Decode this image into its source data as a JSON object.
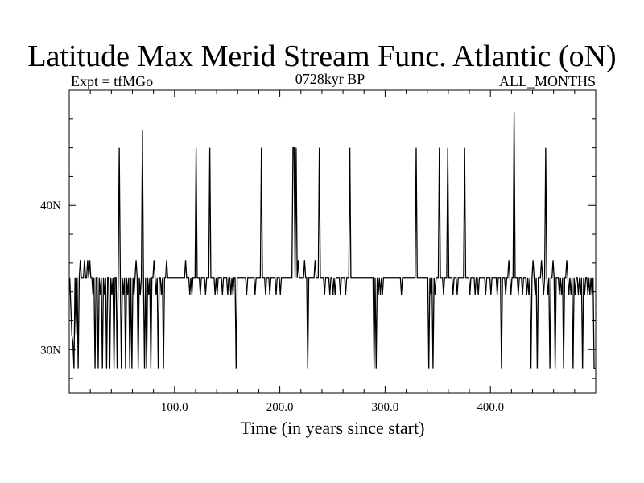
{
  "chart_data": {
    "type": "line",
    "title": "Latitude Max Merid Stream Func. Atlantic (oN)",
    "left_note": "Expt = tfMGo",
    "subtitle": "0728kyr BP",
    "right_note": "ALL_MONTHS",
    "xlabel": "Time (in years since start)",
    "ylabel": "",
    "xlim": [
      0,
      500
    ],
    "ylim": [
      27,
      48
    ],
    "x_ticks": [
      100,
      200,
      300,
      400
    ],
    "x_tick_labels": [
      "100.0",
      "200.0",
      "300.0",
      "400.0"
    ],
    "y_ticks": [
      30,
      40
    ],
    "y_tick_labels": [
      "30N",
      "40N"
    ],
    "grid": false,
    "legend": "none",
    "line_color": "#000000",
    "baseline": 35,
    "upper_alt": 36.2,
    "lower_alt": 33.8,
    "low_value": 28.7,
    "x_start": 0.5,
    "x_step": 1,
    "events": [
      [
        1,
        33
      ],
      [
        2,
        31
      ],
      [
        3,
        30.5
      ],
      [
        4,
        28.7
      ],
      [
        6,
        31
      ],
      [
        8,
        28.7
      ],
      [
        10,
        36.2
      ],
      [
        12,
        35
      ],
      [
        14,
        36.2
      ],
      [
        16,
        35
      ],
      [
        17,
        36.2
      ],
      [
        19,
        36.2
      ],
      [
        22,
        33.8
      ],
      [
        24,
        28.7
      ],
      [
        27,
        28.7
      ],
      [
        29,
        33.8
      ],
      [
        31,
        28.7
      ],
      [
        33,
        33.8
      ],
      [
        35,
        28.7
      ],
      [
        38,
        28.7
      ],
      [
        40,
        33.8
      ],
      [
        42,
        28.7
      ],
      [
        45,
        28.7
      ],
      [
        47,
        44
      ],
      [
        49,
        28.7
      ],
      [
        51,
        33.8
      ],
      [
        53,
        28.7
      ],
      [
        55,
        33.8
      ],
      [
        57,
        28.7
      ],
      [
        59,
        28.7
      ],
      [
        61,
        33.8
      ],
      [
        63,
        36.2
      ],
      [
        65,
        28.7
      ],
      [
        67,
        33.8
      ],
      [
        69,
        45.2
      ],
      [
        71,
        28.7
      ],
      [
        73,
        28.7
      ],
      [
        75,
        33.8
      ],
      [
        77,
        28.7
      ],
      [
        80,
        36.2
      ],
      [
        82,
        33.8
      ],
      [
        84,
        28.7
      ],
      [
        87,
        33.8
      ],
      [
        89,
        28.7
      ],
      [
        92,
        36.2
      ],
      [
        110,
        36.2
      ],
      [
        114,
        33.8
      ],
      [
        116,
        33.8
      ],
      [
        120,
        44
      ],
      [
        124,
        33.8
      ],
      [
        129,
        33.8
      ],
      [
        133,
        44
      ],
      [
        138,
        33.8
      ],
      [
        140,
        33.8
      ],
      [
        145,
        33.8
      ],
      [
        150,
        33.8
      ],
      [
        153,
        33.8
      ],
      [
        155,
        33.8
      ],
      [
        158,
        28.7
      ],
      [
        168,
        33.8
      ],
      [
        176,
        33.8
      ],
      [
        182,
        44
      ],
      [
        186,
        33.8
      ],
      [
        190,
        33.8
      ],
      [
        196,
        33.8
      ],
      [
        200,
        33.8
      ],
      [
        212,
        44
      ],
      [
        213,
        44
      ],
      [
        215,
        44
      ],
      [
        217,
        36.2
      ],
      [
        223,
        36.2
      ],
      [
        226,
        28.7
      ],
      [
        233,
        36.2
      ],
      [
        237,
        44
      ],
      [
        242,
        33.8
      ],
      [
        247,
        33.8
      ],
      [
        250,
        33.8
      ],
      [
        252,
        33.8
      ],
      [
        257,
        33.8
      ],
      [
        262,
        33.8
      ],
      [
        266,
        44
      ],
      [
        289,
        28.7
      ],
      [
        291,
        28.7
      ],
      [
        293,
        33.8
      ],
      [
        295,
        33.8
      ],
      [
        297,
        33.8
      ],
      [
        315,
        33.8
      ],
      [
        329,
        44
      ],
      [
        341,
        28.7
      ],
      [
        343,
        33.8
      ],
      [
        345,
        28.7
      ],
      [
        347,
        33.8
      ],
      [
        351,
        44
      ],
      [
        355,
        33.8
      ],
      [
        359,
        44
      ],
      [
        364,
        33.8
      ],
      [
        368,
        33.8
      ],
      [
        375,
        44
      ],
      [
        380,
        33.8
      ],
      [
        385,
        33.8
      ],
      [
        388,
        33.8
      ],
      [
        395,
        33.8
      ],
      [
        400,
        33.8
      ],
      [
        406,
        33.8
      ],
      [
        410,
        28.7
      ],
      [
        414,
        33.8
      ],
      [
        417,
        36.2
      ],
      [
        419,
        33.8
      ],
      [
        422,
        46.5
      ],
      [
        426,
        33.8
      ],
      [
        430,
        33.8
      ],
      [
        434,
        33.8
      ],
      [
        436,
        33.8
      ],
      [
        438,
        28.7
      ],
      [
        440,
        36.2
      ],
      [
        442,
        33.8
      ],
      [
        444,
        28.7
      ],
      [
        448,
        36.2
      ],
      [
        450,
        33.8
      ],
      [
        452,
        44
      ],
      [
        454,
        33.8
      ],
      [
        456,
        28.7
      ],
      [
        459,
        36.2
      ],
      [
        461,
        28.7
      ],
      [
        465,
        33.8
      ],
      [
        467,
        33.8
      ],
      [
        469,
        28.7
      ],
      [
        472,
        36.2
      ],
      [
        474,
        33.8
      ],
      [
        476,
        33.8
      ],
      [
        478,
        28.7
      ],
      [
        480,
        33.8
      ],
      [
        483,
        33.8
      ],
      [
        485,
        33.8
      ],
      [
        487,
        28.7
      ],
      [
        489,
        33.8
      ],
      [
        492,
        33.8
      ],
      [
        494,
        33.8
      ],
      [
        496,
        33.8
      ],
      [
        498,
        28.7
      ],
      [
        499,
        28.7
      ]
    ]
  }
}
